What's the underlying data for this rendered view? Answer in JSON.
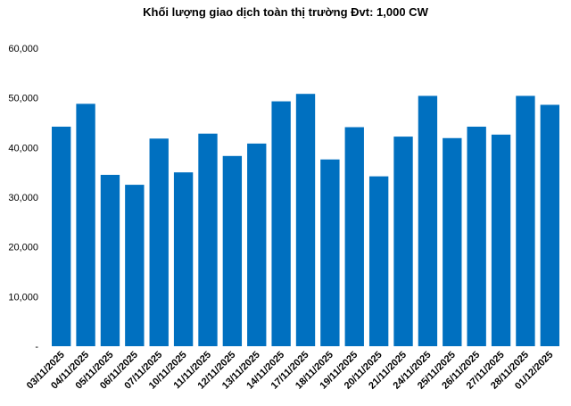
{
  "chart_data": {
    "type": "bar",
    "title": "Khối lượng giao dịch toàn thị trường Đvt: 1,000 CW",
    "xlabel": "",
    "ylabel": "",
    "ylim": [
      0,
      60000
    ],
    "yticks": [
      0,
      10000,
      20000,
      30000,
      40000,
      50000,
      60000
    ],
    "ytick_labels": [
      "-",
      "10,000",
      "20,000",
      "30,000",
      "40,000",
      "50,000",
      "60,000"
    ],
    "grid": false,
    "legend": "none",
    "bar_color": "#0070C0",
    "categories": [
      "03/11/2025",
      "04/11/2025",
      "05/11/2025",
      "06/11/2025",
      "07/11/2025",
      "10/11/2025",
      "11/11/2025",
      "12/11/2025",
      "13/11/2025",
      "14/11/2025",
      "17/11/2025",
      "18/11/2025",
      "19/11/2025",
      "20/11/2025",
      "21/11/2025",
      "24/11/2025",
      "25/11/2025",
      "26/11/2025",
      "27/11/2025",
      "28/11/2025",
      "01/12/2025"
    ],
    "values": [
      44200,
      48800,
      34500,
      32500,
      41800,
      35000,
      42800,
      38300,
      40800,
      49300,
      50800,
      37600,
      44100,
      34200,
      42200,
      50400,
      41900,
      44200,
      42600,
      50400,
      48600
    ]
  }
}
